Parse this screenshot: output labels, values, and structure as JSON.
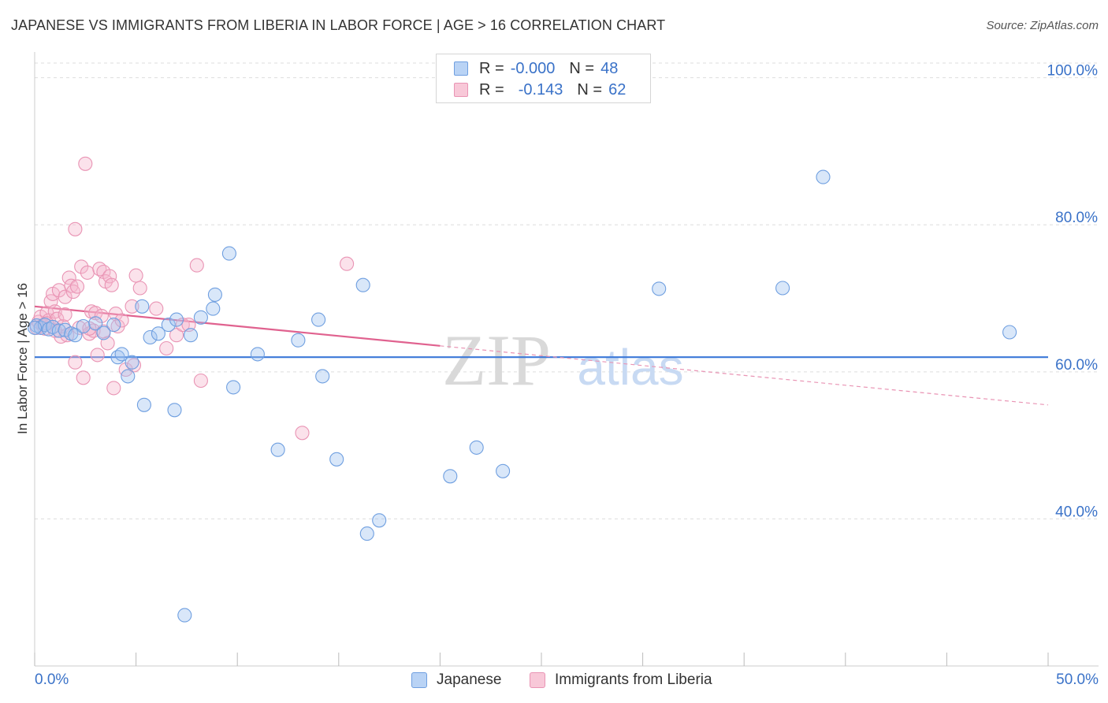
{
  "header": {
    "title": "JAPANESE VS IMMIGRANTS FROM LIBERIA IN LABOR FORCE | AGE > 16 CORRELATION CHART",
    "source": "Source: ZipAtlas.com"
  },
  "stats": {
    "rows": [
      {
        "r_label": "R =",
        "r_value": "-0.000",
        "n_label": "N =",
        "n_value": "48"
      },
      {
        "r_label": "R =",
        "r_value": "-0.143",
        "n_label": "N =",
        "n_value": "62"
      }
    ]
  },
  "watermark": {
    "zip": "ZIP",
    "atlas": "atlas"
  },
  "colors": {
    "japanese": "#6f9fe0",
    "japanese_fill": "#b9d3f5",
    "liberia": "#e994b4",
    "liberia_fill": "#f8c8d8",
    "axis_text": "#3a72c8"
  },
  "chart_data": {
    "type": "scatter",
    "title": "JAPANESE VS IMMIGRANTS FROM LIBERIA IN LABOR FORCE | AGE > 16 CORRELATION CHART",
    "xlabel": "",
    "ylabel": "In Labor Force | Age > 16",
    "xlim": [
      0,
      50
    ],
    "ylim": [
      20,
      102
    ],
    "x_tick_labels": [
      "0.0%",
      "50.0%"
    ],
    "y_ticks": [
      {
        "value": 100,
        "label": "100.0%"
      },
      {
        "value": 80,
        "label": "80.0%"
      },
      {
        "value": 60,
        "label": "60.0%"
      },
      {
        "value": 40,
        "label": "40.0%"
      }
    ],
    "grid": true,
    "legend": [
      "Japanese",
      "Immigrants from Liberia"
    ],
    "series": [
      {
        "name": "Japanese",
        "r": -0.0,
        "n": 48,
        "trend": {
          "x0": 0,
          "y0": 62.0,
          "x1": 50,
          "y1": 62.0,
          "solid_until": 50
        },
        "points": [
          [
            0.1,
            66.3
          ],
          [
            0.3,
            66.0
          ],
          [
            0.5,
            66.4
          ],
          [
            0.7,
            65.8
          ],
          [
            0.9,
            66.1
          ],
          [
            1.2,
            65.6
          ],
          [
            1.5,
            65.7
          ],
          [
            1.8,
            65.2
          ],
          [
            2.0,
            65.0
          ],
          [
            2.4,
            66.2
          ],
          [
            3.0,
            66.6
          ],
          [
            3.4,
            65.3
          ],
          [
            3.9,
            66.4
          ],
          [
            4.1,
            62.0
          ],
          [
            4.3,
            62.4
          ],
          [
            4.6,
            59.4
          ],
          [
            4.8,
            61.3
          ],
          [
            5.3,
            68.9
          ],
          [
            5.4,
            55.5
          ],
          [
            5.7,
            64.7
          ],
          [
            6.1,
            65.2
          ],
          [
            6.6,
            66.4
          ],
          [
            6.9,
            54.8
          ],
          [
            7.0,
            67.1
          ],
          [
            7.4,
            26.9
          ],
          [
            7.7,
            65.0
          ],
          [
            8.2,
            67.4
          ],
          [
            8.8,
            68.6
          ],
          [
            8.9,
            70.5
          ],
          [
            9.6,
            76.1
          ],
          [
            9.8,
            57.9
          ],
          [
            11.0,
            62.4
          ],
          [
            12.0,
            49.4
          ],
          [
            13.0,
            64.3
          ],
          [
            14.0,
            67.1
          ],
          [
            14.2,
            59.4
          ],
          [
            14.9,
            48.1
          ],
          [
            16.2,
            71.8
          ],
          [
            16.4,
            38.0
          ],
          [
            17.0,
            39.8
          ],
          [
            20.5,
            45.8
          ],
          [
            21.8,
            49.7
          ],
          [
            23.1,
            46.5
          ],
          [
            30.8,
            71.3
          ],
          [
            36.9,
            71.4
          ],
          [
            38.9,
            86.5
          ],
          [
            48.1,
            65.4
          ],
          [
            0.0,
            66.0
          ]
        ]
      },
      {
        "name": "Immigrants from Liberia",
        "r": -0.143,
        "n": 62,
        "trend": {
          "x0": 0,
          "y0": 68.9,
          "x1": 50,
          "y1": 55.5,
          "solid_until": 20
        },
        "points": [
          [
            0.1,
            66.0
          ],
          [
            0.2,
            66.8
          ],
          [
            0.3,
            67.5
          ],
          [
            0.4,
            66.3
          ],
          [
            0.5,
            65.9
          ],
          [
            0.6,
            68.0
          ],
          [
            0.7,
            67.0
          ],
          [
            0.8,
            69.6
          ],
          [
            0.9,
            70.6
          ],
          [
            1.0,
            68.2
          ],
          [
            1.1,
            67.2
          ],
          [
            1.2,
            71.1
          ],
          [
            1.3,
            64.8
          ],
          [
            1.4,
            66.2
          ],
          [
            1.5,
            70.2
          ],
          [
            1.6,
            65.0
          ],
          [
            1.7,
            72.8
          ],
          [
            1.8,
            71.7
          ],
          [
            1.9,
            70.9
          ],
          [
            2.0,
            61.3
          ],
          [
            2.0,
            79.4
          ],
          [
            2.1,
            71.6
          ],
          [
            2.2,
            66.0
          ],
          [
            2.3,
            74.3
          ],
          [
            2.4,
            59.2
          ],
          [
            2.5,
            88.3
          ],
          [
            2.6,
            73.5
          ],
          [
            2.7,
            65.2
          ],
          [
            2.8,
            68.2
          ],
          [
            2.9,
            65.6
          ],
          [
            3.0,
            68.0
          ],
          [
            3.1,
            62.3
          ],
          [
            3.2,
            74.0
          ],
          [
            3.3,
            67.6
          ],
          [
            3.4,
            73.6
          ],
          [
            3.5,
            72.3
          ],
          [
            3.6,
            63.9
          ],
          [
            3.7,
            73.0
          ],
          [
            3.8,
            71.8
          ],
          [
            3.9,
            57.8
          ],
          [
            4.0,
            67.9
          ],
          [
            4.1,
            66.2
          ],
          [
            4.3,
            67.0
          ],
          [
            4.5,
            60.3
          ],
          [
            4.8,
            68.9
          ],
          [
            5.0,
            73.1
          ],
          [
            5.2,
            71.4
          ],
          [
            6.0,
            68.6
          ],
          [
            6.5,
            63.2
          ],
          [
            7.0,
            65.0
          ],
          [
            7.3,
            66.4
          ],
          [
            7.6,
            66.4
          ],
          [
            8.0,
            74.5
          ],
          [
            8.2,
            58.8
          ],
          [
            13.2,
            51.7
          ],
          [
            15.4,
            74.7
          ],
          [
            1.0,
            65.6
          ],
          [
            0.6,
            66.6
          ],
          [
            1.5,
            67.8
          ],
          [
            2.7,
            65.9
          ],
          [
            3.4,
            65.5
          ],
          [
            4.9,
            60.9
          ]
        ]
      }
    ]
  }
}
